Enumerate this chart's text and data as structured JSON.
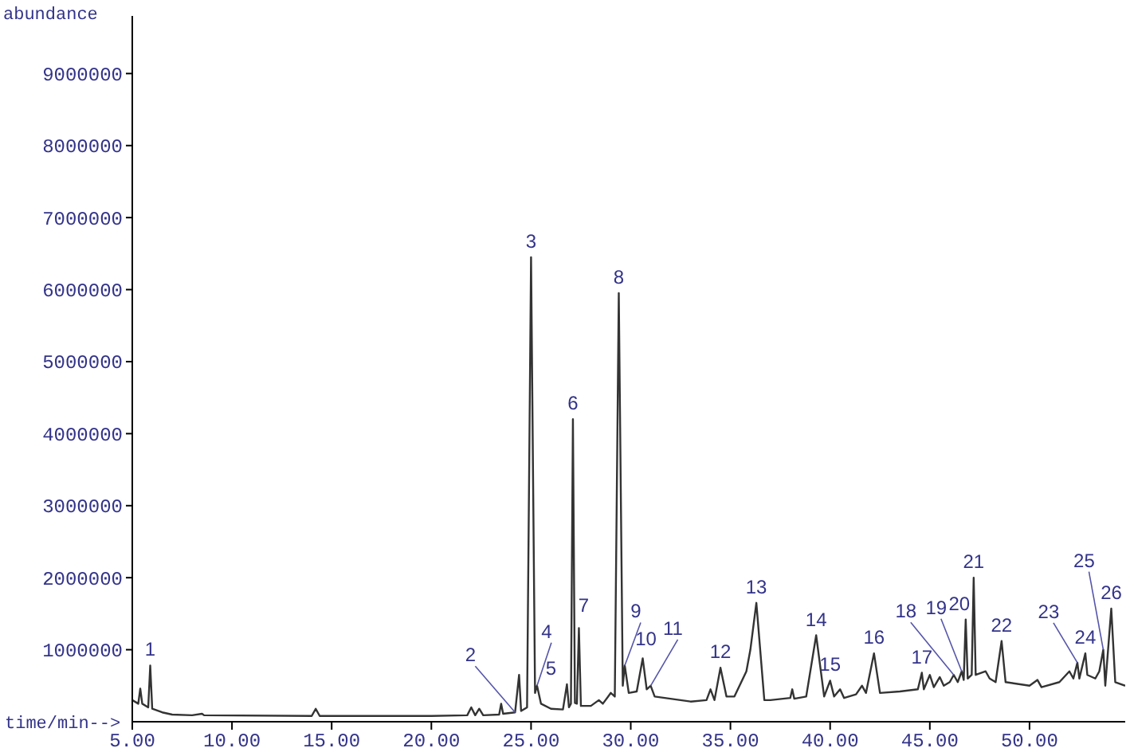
{
  "chart_data": {
    "type": "line",
    "xlabel": "time/min-->",
    "ylabel": "abundance",
    "x": [
      5.0,
      5.3,
      5.4,
      5.5,
      5.8,
      5.9,
      6.0,
      6.5,
      7.0,
      8.0,
      8.5,
      8.6,
      14.0,
      14.2,
      14.4,
      20.0,
      21.8,
      22.0,
      22.2,
      22.4,
      22.6,
      23.4,
      23.5,
      23.6,
      24.2,
      24.4,
      24.5,
      24.8,
      25.0,
      25.2,
      25.3,
      25.5,
      26.0,
      26.6,
      26.8,
      26.9,
      27.0,
      27.1,
      27.2,
      27.3,
      27.4,
      27.5,
      28.0,
      28.4,
      28.6,
      29.0,
      29.2,
      29.4,
      29.6,
      29.7,
      29.9,
      30.3,
      30.6,
      30.8,
      31.0,
      31.2,
      33.0,
      33.8,
      34.0,
      34.2,
      34.5,
      34.8,
      35.2,
      35.8,
      36.0,
      36.3,
      36.7,
      37.0,
      38.0,
      38.1,
      38.2,
      38.8,
      39.3,
      39.7,
      40.0,
      40.2,
      40.5,
      40.7,
      41.3,
      41.6,
      41.8,
      42.2,
      42.5,
      43.5,
      44.4,
      44.6,
      44.7,
      45.0,
      45.2,
      45.5,
      45.7,
      46.0,
      46.2,
      46.4,
      46.6,
      46.7,
      46.8,
      46.9,
      47.1,
      47.2,
      47.3,
      47.8,
      48.0,
      48.3,
      48.6,
      48.8,
      50.0,
      50.4,
      50.6,
      51.5,
      52.0,
      52.2,
      52.4,
      52.5,
      52.8,
      52.9,
      53.3,
      53.5,
      53.7,
      53.8,
      54.1,
      54.3,
      54.8
    ],
    "series": [
      {
        "color": "#333333",
        "values": [
          300000,
          250000,
          460000,
          250000,
          200000,
          780000,
          180000,
          130000,
          100000,
          90000,
          110000,
          90000,
          80000,
          180000,
          80000,
          80000,
          90000,
          200000,
          90000,
          180000,
          90000,
          100000,
          250000,
          110000,
          130000,
          650000,
          150000,
          200000,
          6450000,
          400000,
          500000,
          250000,
          180000,
          170000,
          520000,
          200000,
          250000,
          4200000,
          260000,
          250000,
          1300000,
          220000,
          220000,
          300000,
          250000,
          400000,
          350000,
          5950000,
          500000,
          780000,
          400000,
          420000,
          880000,
          450000,
          500000,
          350000,
          280000,
          300000,
          450000,
          300000,
          750000,
          350000,
          350000,
          700000,
          1000000,
          1650000,
          300000,
          300000,
          330000,
          450000,
          320000,
          350000,
          1200000,
          350000,
          570000,
          350000,
          450000,
          330000,
          380000,
          500000,
          400000,
          950000,
          400000,
          420000,
          450000,
          680000,
          450000,
          650000,
          480000,
          620000,
          500000,
          550000,
          650000,
          550000,
          700000,
          580000,
          1420000,
          600000,
          650000,
          2000000,
          650000,
          700000,
          600000,
          550000,
          1120000,
          550000,
          500000,
          580000,
          480000,
          550000,
          700000,
          600000,
          820000,
          600000,
          950000,
          650000,
          600000,
          700000,
          1000000,
          500000,
          1570000,
          550000,
          500000
        ]
      }
    ],
    "xlim": [
      5,
      54.8
    ],
    "ylim": [
      0,
      9800000
    ],
    "xticks": [
      {
        "value": 5,
        "label": "5.00"
      },
      {
        "value": 10,
        "label": "10.00"
      },
      {
        "value": 15,
        "label": "15.00"
      },
      {
        "value": 20,
        "label": "20.00"
      },
      {
        "value": 25,
        "label": "25.00"
      },
      {
        "value": 30,
        "label": "30.00"
      },
      {
        "value": 35,
        "label": "35.00"
      },
      {
        "value": 40,
        "label": "40.00"
      },
      {
        "value": 45,
        "label": "45.00"
      },
      {
        "value": 50,
        "label": "50.00"
      }
    ],
    "yticks": [
      1000000,
      2000000,
      3000000,
      4000000,
      5000000,
      6000000,
      7000000,
      8000000,
      9000000
    ],
    "grid": false,
    "marker": "none",
    "line_style": "solid",
    "annotations": [
      {
        "text": "1",
        "x": 5.9,
        "y": 780000
      },
      {
        "text": "2",
        "x": 24.2,
        "y": 130000
      },
      {
        "text": "3",
        "x": 25.0,
        "y": 6450000
      },
      {
        "text": "4",
        "x": 25.3,
        "y": 500000
      },
      {
        "text": "5",
        "x": 26.8,
        "y": 520000
      },
      {
        "text": "6",
        "x": 27.1,
        "y": 4200000
      },
      {
        "text": "7",
        "x": 27.4,
        "y": 1300000
      },
      {
        "text": "8",
        "x": 29.4,
        "y": 5950000
      },
      {
        "text": "9",
        "x": 29.7,
        "y": 780000
      },
      {
        "text": "10",
        "x": 30.6,
        "y": 880000
      },
      {
        "text": "11",
        "x": 31.0,
        "y": 500000
      },
      {
        "text": "12",
        "x": 34.5,
        "y": 750000
      },
      {
        "text": "13",
        "x": 36.3,
        "y": 1650000
      },
      {
        "text": "14",
        "x": 39.3,
        "y": 1200000
      },
      {
        "text": "15",
        "x": 40.0,
        "y": 570000
      },
      {
        "text": "16",
        "x": 42.2,
        "y": 950000
      },
      {
        "text": "17",
        "x": 44.6,
        "y": 680000
      },
      {
        "text": "18",
        "x": 46.2,
        "y": 650000
      },
      {
        "text": "19",
        "x": 46.6,
        "y": 700000
      },
      {
        "text": "20",
        "x": 46.8,
        "y": 1420000
      },
      {
        "text": "21",
        "x": 47.2,
        "y": 2000000
      },
      {
        "text": "22",
        "x": 48.6,
        "y": 1120000
      },
      {
        "text": "23",
        "x": 52.4,
        "y": 820000
      },
      {
        "text": "24",
        "x": 52.8,
        "y": 950000
      },
      {
        "text": "25",
        "x": 53.7,
        "y": 1000000
      },
      {
        "text": "26",
        "x": 54.1,
        "y": 1570000
      }
    ]
  }
}
